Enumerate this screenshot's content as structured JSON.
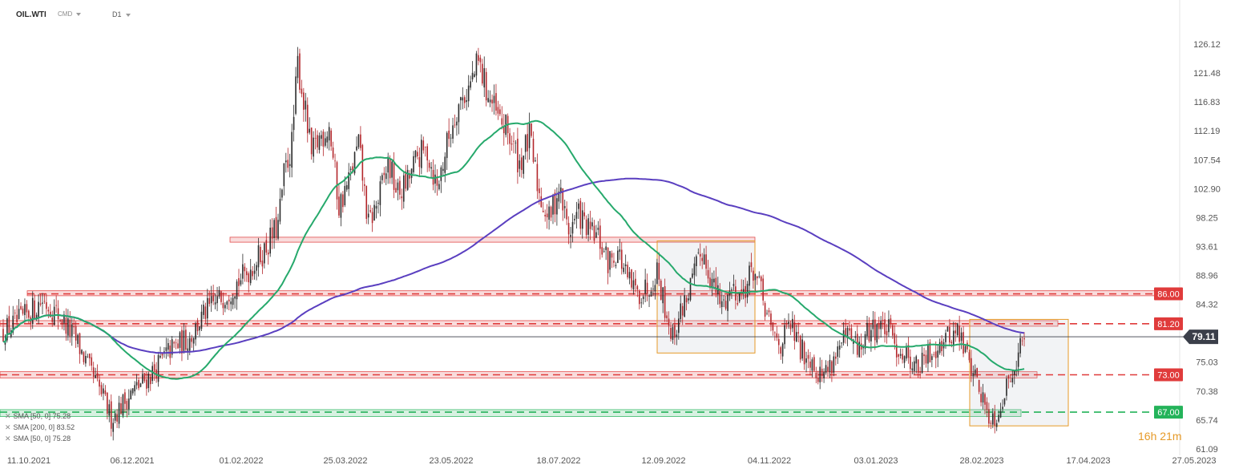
{
  "header": {
    "symbol": "OIL.WTI",
    "exchange": "CMD",
    "timeframe": "D1"
  },
  "legend": [
    {
      "label": "SMA [50, 0] 75.28",
      "color": "#26a96c"
    },
    {
      "label": "SMA [200, 0] 83.52",
      "color": "#5a3fc0"
    },
    {
      "label": "SMA [50, 0] 75.28",
      "color": "#26a96c"
    }
  ],
  "timer": "16h 21m",
  "chart_data": {
    "type": "candlestick",
    "y_axis_ticks": [
      "126.12",
      "121.48",
      "116.83",
      "112.19",
      "107.54",
      "102.90",
      "98.25",
      "93.61",
      "88.96",
      "84.32",
      "79.11",
      "75.03",
      "70.38",
      "65.74",
      "61.09"
    ],
    "x_axis_ticks": [
      "11.10.2021",
      "06.12.2021",
      "01.02.2022",
      "25.03.2022",
      "23.05.2022",
      "18.07.2022",
      "12.09.2022",
      "04.11.2022",
      "03.01.2023",
      "28.02.2023",
      "17.04.2023",
      "27.05.2023"
    ],
    "last_price": {
      "value": "79.11",
      "color": "#3b3f4a"
    },
    "horizontal_levels": [
      {
        "value": "86.00",
        "color": "#e03b3b",
        "style": "dashed"
      },
      {
        "value": "81.20",
        "color": "#e03b3b",
        "style": "dashed"
      },
      {
        "value": "73.00",
        "color": "#e03b3b",
        "style": "dashed"
      },
      {
        "value": "67.00",
        "color": "#24b35a",
        "style": "dashed"
      }
    ],
    "zones": [
      {
        "range": [
          94.3,
          95.1
        ],
        "color": "#e03b3b"
      },
      {
        "range": [
          85.7,
          86.5
        ],
        "color": "#e03b3b"
      },
      {
        "range": [
          80.8,
          81.7
        ],
        "color": "#e03b3b"
      },
      {
        "range": [
          72.5,
          73.5
        ],
        "color": "#e03b3b"
      },
      {
        "range": [
          66.3,
          67.4
        ],
        "color": "#24b35a"
      }
    ],
    "boxes": [
      {
        "y_range": [
          76.5,
          94.5
        ],
        "color": "#e69a28"
      },
      {
        "y_range": [
          64.8,
          81.9
        ],
        "color": "#e69a28"
      }
    ],
    "sma_50_color": "#26a96c",
    "sma_200_color": "#5a3fc0",
    "up_color": "#2b2b2b",
    "down_color": "#b3262b",
    "grid": false
  }
}
